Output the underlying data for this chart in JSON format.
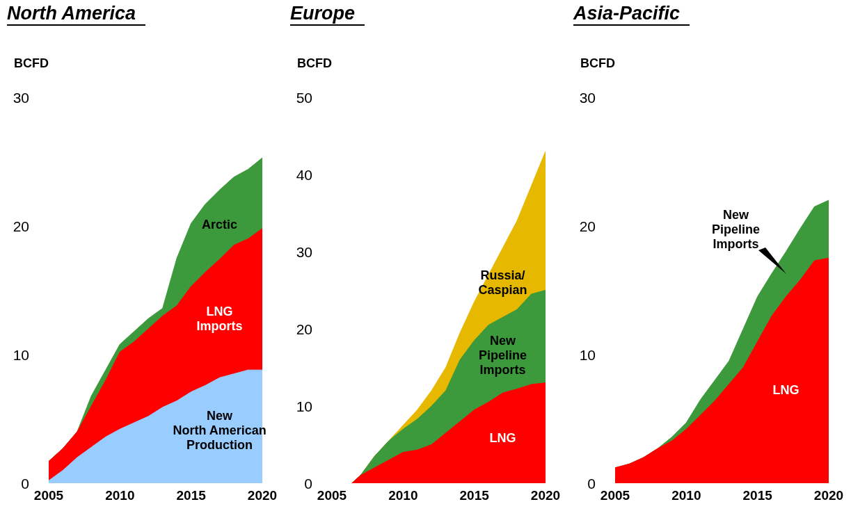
{
  "chart_data": [
    {
      "type": "area",
      "title": "North America",
      "ylabel": "BCFD",
      "stacked": true,
      "x": [
        2005,
        2006,
        2007,
        2008,
        2009,
        2010,
        2011,
        2012,
        2013,
        2014,
        2015,
        2016,
        2017,
        2018,
        2019,
        2020
      ],
      "xlim": [
        2005,
        2020
      ],
      "xticks": [
        2005,
        2010,
        2015,
        2020
      ],
      "ylim": [
        0,
        30
      ],
      "yticks": [
        0,
        10,
        20,
        30
      ],
      "grid": false,
      "legend": false,
      "marker": "none",
      "series": [
        {
          "name": "New\nNorth American\nProduction",
          "color": "#99ccff",
          "values": [
            0.2,
            1,
            2,
            2.8,
            3.6,
            4.2,
            4.7,
            5.2,
            5.9,
            6.4,
            7.1,
            7.6,
            8.2,
            8.5,
            8.8,
            8.8
          ]
        },
        {
          "name": "LNG\nImports",
          "color": "#ff0000",
          "values": [
            1.5,
            1.7,
            2,
            3.2,
            4.4,
            6,
            6.3,
            6.8,
            7.1,
            7.4,
            8.2,
            8.8,
            9.2,
            10,
            10.2,
            11
          ]
        },
        {
          "name": "Arctic",
          "color": "#3c9a3c",
          "values": [
            0,
            0,
            0,
            0.8,
            0.8,
            0.6,
            0.8,
            0.8,
            0.6,
            3.7,
            4.9,
            5.3,
            5.4,
            5.3,
            5.4,
            5.5
          ]
        }
      ]
    },
    {
      "type": "area",
      "title": "Europe",
      "ylabel": "BCFD",
      "stacked": true,
      "x": [
        2006.4,
        2007,
        2008,
        2009,
        2010,
        2011,
        2012,
        2013,
        2014,
        2015,
        2016,
        2017,
        2018,
        2019,
        2020
      ],
      "xlim": [
        2005,
        2020
      ],
      "xticks": [
        2005,
        2010,
        2015,
        2020
      ],
      "ylim": [
        0,
        50
      ],
      "yticks": [
        0,
        10,
        20,
        30,
        40,
        50
      ],
      "grid": false,
      "legend": false,
      "marker": "none",
      "series": [
        {
          "name": "LNG",
          "color": "#ff0000",
          "values": [
            0,
            1,
            2,
            3,
            4,
            4.3,
            5,
            6.5,
            8,
            9.5,
            10.5,
            11.7,
            12.2,
            12.8,
            13
          ]
        },
        {
          "name": "New\nPipeline\nImports",
          "color": "#3c9a3c",
          "values": [
            0,
            0,
            1.5,
            2.5,
            3,
            4,
            5,
            5.5,
            8,
            9,
            10,
            9.8,
            10.3,
            11.7,
            12
          ]
        },
        {
          "name": "Russia/\nCaspian",
          "color": "#e6b800",
          "values": [
            0,
            0,
            0,
            0,
            0.5,
            1.2,
            2,
            3,
            3.5,
            5,
            6.5,
            9,
            11.5,
            14,
            18
          ]
        }
      ]
    },
    {
      "type": "area",
      "title": "Asia-Pacific",
      "ylabel": "BCFD",
      "stacked": true,
      "x": [
        2005,
        2006,
        2007,
        2008,
        2009,
        2010,
        2011,
        2012,
        2013,
        2014,
        2015,
        2016,
        2017,
        2018,
        2019,
        2020
      ],
      "xlim": [
        2005,
        2020
      ],
      "xticks": [
        2005,
        2010,
        2015,
        2020
      ],
      "ylim": [
        0,
        30
      ],
      "yticks": [
        0,
        10,
        20,
        30
      ],
      "grid": false,
      "legend": false,
      "marker": "none",
      "series": [
        {
          "name": "LNG",
          "color": "#ff0000",
          "values": [
            1.2,
            1.5,
            2,
            2.7,
            3.3,
            4.2,
            5.3,
            6.4,
            7.7,
            9,
            11,
            13,
            14.5,
            15.8,
            17.3,
            17.5
          ]
        },
        {
          "name": "New\nPipeline\nImports",
          "color": "#3c9a3c",
          "values": [
            0,
            0,
            0,
            0,
            0.3,
            0.5,
            1.2,
            1.6,
            1.8,
            3,
            3.5,
            3.3,
            3.5,
            4,
            4.2,
            4.5
          ]
        }
      ]
    }
  ]
}
